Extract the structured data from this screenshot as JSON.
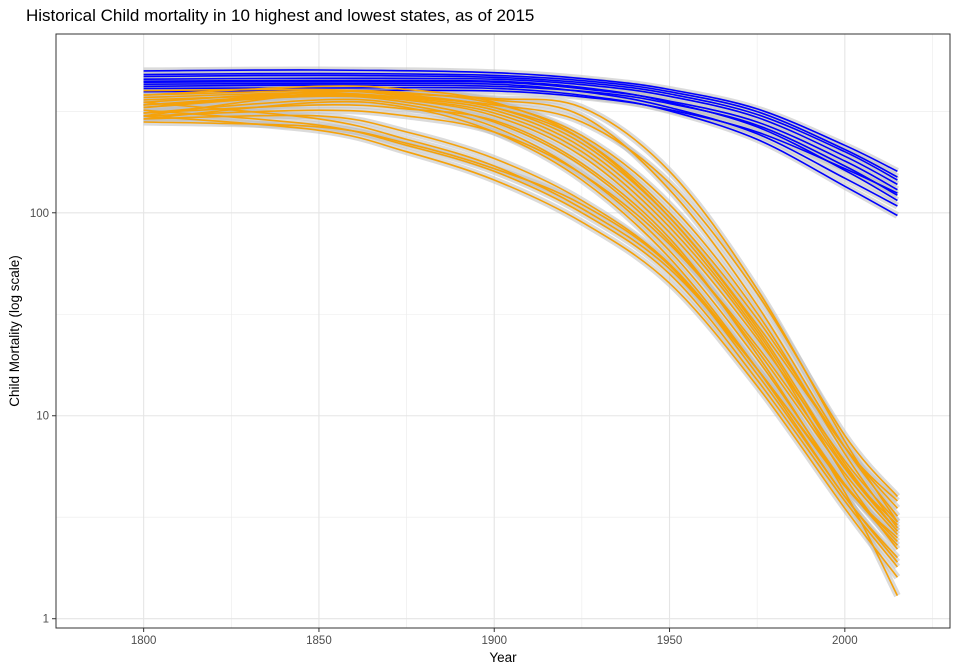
{
  "chart_data": {
    "type": "line",
    "title": "Historical Child mortality in 10 highest and lowest states, as of 2015",
    "xlabel": "Year",
    "ylabel": "Child Mortality (log scale)",
    "y_scale": "log10",
    "xlim": [
      1775,
      2030
    ],
    "ylim": [
      0.9,
      760
    ],
    "x_ticks": [
      1800,
      1850,
      1900,
      1950,
      2000
    ],
    "x_tick_labels": [
      "1800",
      "1850",
      "1900",
      "1950",
      "2000"
    ],
    "y_ticks": [
      1,
      10,
      100
    ],
    "y_tick_labels": [
      "1",
      "10",
      "100"
    ],
    "grid": true,
    "legend": "none",
    "ribbon_color": "#bdbdbd",
    "groups": [
      {
        "group": "highest",
        "color": "#0000ff",
        "x": [
          1800,
          1850,
          1900,
          1930,
          1950,
          1975,
          2000,
          2015
        ],
        "series": [
          {
            "values": [
              500,
              505,
              490,
              450,
              405,
              325,
              215,
              160
            ]
          },
          {
            "values": [
              480,
              485,
              475,
              440,
              395,
              315,
              205,
              150
            ]
          },
          {
            "values": [
              455,
              460,
              455,
              420,
              375,
              295,
              190,
              138
            ]
          },
          {
            "values": [
              440,
              442,
              440,
              400,
              355,
              280,
              180,
              130
            ]
          },
          {
            "values": [
              470,
              475,
              465,
              430,
              385,
              305,
              200,
              145
            ]
          },
          {
            "values": [
              420,
              425,
              420,
              390,
              345,
              270,
              170,
              122
            ]
          },
          {
            "values": [
              445,
              448,
              445,
              405,
              350,
              265,
              162,
              115
            ]
          },
          {
            "values": [
              430,
              433,
              430,
              385,
              330,
              245,
              148,
              108
            ]
          },
          {
            "values": [
              410,
              412,
              410,
              370,
              318,
              230,
              135,
              97
            ]
          },
          {
            "values": [
              395,
              400,
              398,
              365,
              322,
              250,
              165,
              125
            ]
          }
        ]
      },
      {
        "group": "lowest",
        "color": "#f5a20a",
        "x": [
          1800,
          1850,
          1875,
          1900,
          1925,
          1950,
          1975,
          2000,
          2015
        ],
        "series": [
          {
            "values": [
              400,
              405,
              380,
              330,
              220,
              95,
              28,
              7.0,
              3.5
            ]
          },
          {
            "values": [
              370,
              390,
              360,
              300,
              190,
              80,
              24,
              6.0,
              3.0
            ]
          },
          {
            "values": [
              340,
              375,
              350,
              280,
              170,
              72,
              21,
              5.2,
              2.6
            ]
          },
          {
            "values": [
              310,
              360,
              340,
              265,
              155,
              65,
              19,
              4.6,
              2.3
            ]
          },
          {
            "values": [
              290,
              350,
              330,
              250,
              145,
              60,
              17,
              4.0,
              2.0
            ]
          },
          {
            "values": [
              380,
              400,
              390,
              345,
              240,
              110,
              32,
              6.5,
              2.8
            ]
          },
          {
            "values": [
              360,
              380,
              360,
              310,
              200,
              85,
              25,
              5.0,
              2.2
            ]
          },
          {
            "values": [
              300,
              255,
              200,
              145,
              90,
              45,
              14,
              3.5,
              1.6
            ]
          },
          {
            "values": [
              320,
              270,
              215,
              160,
              100,
              50,
              15,
              3.8,
              1.8
            ]
          },
          {
            "values": [
              350,
              290,
              230,
              170,
              105,
              53,
              17,
              4.5,
              2.5
            ]
          },
          {
            "values": [
              330,
              395,
              375,
              330,
              230,
              100,
              30,
              7.0,
              3.8
            ]
          },
          {
            "values": [
              300,
              320,
              300,
              250,
              155,
              70,
              22,
              5.5,
              2.7
            ]
          },
          {
            "values": [
              280,
              265,
              220,
              165,
              110,
              55,
              16,
              4.0,
              1.9
            ]
          },
          {
            "values": [
              340,
              385,
              370,
              340,
              280,
              140,
              40,
              8.0,
              4.0
            ]
          },
          {
            "values": [
              350,
              395,
              385,
              360,
              300,
              130,
              35,
              7.0,
              3.2
            ]
          },
          {
            "values": [
              300,
              390,
              385,
              365,
              330,
              160,
              42,
              7.5,
              3.0
            ]
          },
          {
            "values": [
              330,
              380,
              365,
              320,
              210,
              90,
              26,
              5.6,
              2.9
            ]
          },
          {
            "values": [
              380,
              420,
              405,
              350,
              230,
              95,
              27,
              5.8,
              2.7
            ]
          },
          {
            "values": [
              310,
              340,
              325,
              285,
              175,
              75,
              20,
              4.2,
              1.3
            ]
          },
          {
            "values": [
              290,
              300,
              250,
              185,
              115,
              56,
              17,
              4.6,
              2.4
            ]
          }
        ]
      }
    ]
  }
}
